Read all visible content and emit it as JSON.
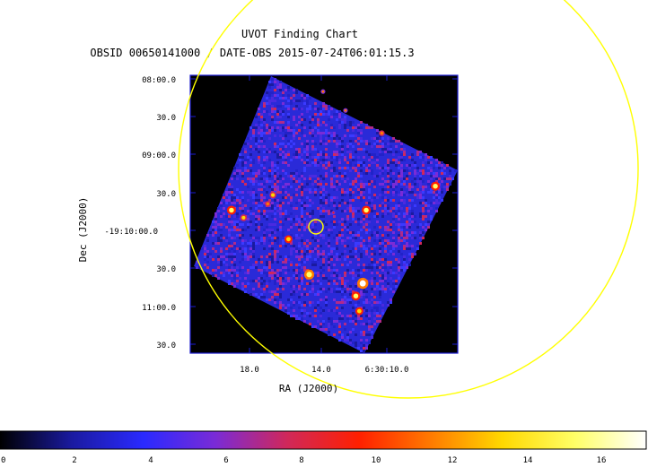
{
  "chart_data": {
    "type": "heatmap",
    "title": "UVOT Finding Chart",
    "subtitle": "OBSID 00650141000 / DATE-OBS 2015-07-24T06:01:15.3",
    "xlabel": "RA (J2000)",
    "ylabel": "Dec (J2000)",
    "x_ticks": [
      "18.0",
      "14.0",
      "6:30:10.0"
    ],
    "y_ticks": [
      "08:00.0",
      "30.0",
      "09:00.0",
      "30.0",
      "-19:10:00.0",
      "30.0",
      "11:00.0",
      "30.0"
    ],
    "colorbar": {
      "min": 0,
      "max": 17,
      "ticks": [
        "0",
        "2",
        "4",
        "6",
        "8",
        "10",
        "12",
        "14",
        "16"
      ],
      "colors": [
        "#000000",
        "#1a1aa0",
        "#2a2aff",
        "#7a2bd6",
        "#d0285a",
        "#ff2000",
        "#ff7a00",
        "#ffd800",
        "#ffff66",
        "#ffffff"
      ]
    },
    "sources": [
      {
        "ra": "6:30:11.6",
        "dec": "-19:10:42",
        "value": 17
      },
      {
        "ra": "6:30:12.0",
        "dec": "-19:10:52",
        "value": 15
      },
      {
        "ra": "6:30:11.8",
        "dec": "-19:11:04",
        "value": 14
      },
      {
        "ra": "6:30:14.7",
        "dec": "-19:10:35",
        "value": 16
      },
      {
        "ra": "6:30:11.4",
        "dec": "-19:09:44",
        "value": 15
      },
      {
        "ra": "6:30:15.9",
        "dec": "-19:10:07",
        "value": 14
      },
      {
        "ra": "6:30:19.2",
        "dec": "-19:09:44",
        "value": 15
      },
      {
        "ra": "6:30:18.5",
        "dec": "-19:09:50",
        "value": 13
      },
      {
        "ra": "6:30:07.4",
        "dec": "-19:09:25",
        "value": 15
      },
      {
        "ra": "6:30:16.8",
        "dec": "-19:09:32",
        "value": 13
      },
      {
        "ra": "6:30:17.1",
        "dec": "-19:09:39",
        "value": 12
      },
      {
        "ra": "6:30:10.5",
        "dec": "-19:08:43",
        "value": 12
      },
      {
        "ra": "6:30:13.9",
        "dec": "-19:08:10",
        "value": 11
      },
      {
        "ra": "6:30:12.6",
        "dec": "-19:08:25",
        "value": 11
      },
      {
        "ra": "6:30:13.3",
        "dec": "-19:09:46",
        "value": 10
      }
    ]
  },
  "colors": {
    "frame": "#1a1ad0",
    "region": "#ffff00",
    "sky_background": "#2a2ad8"
  }
}
